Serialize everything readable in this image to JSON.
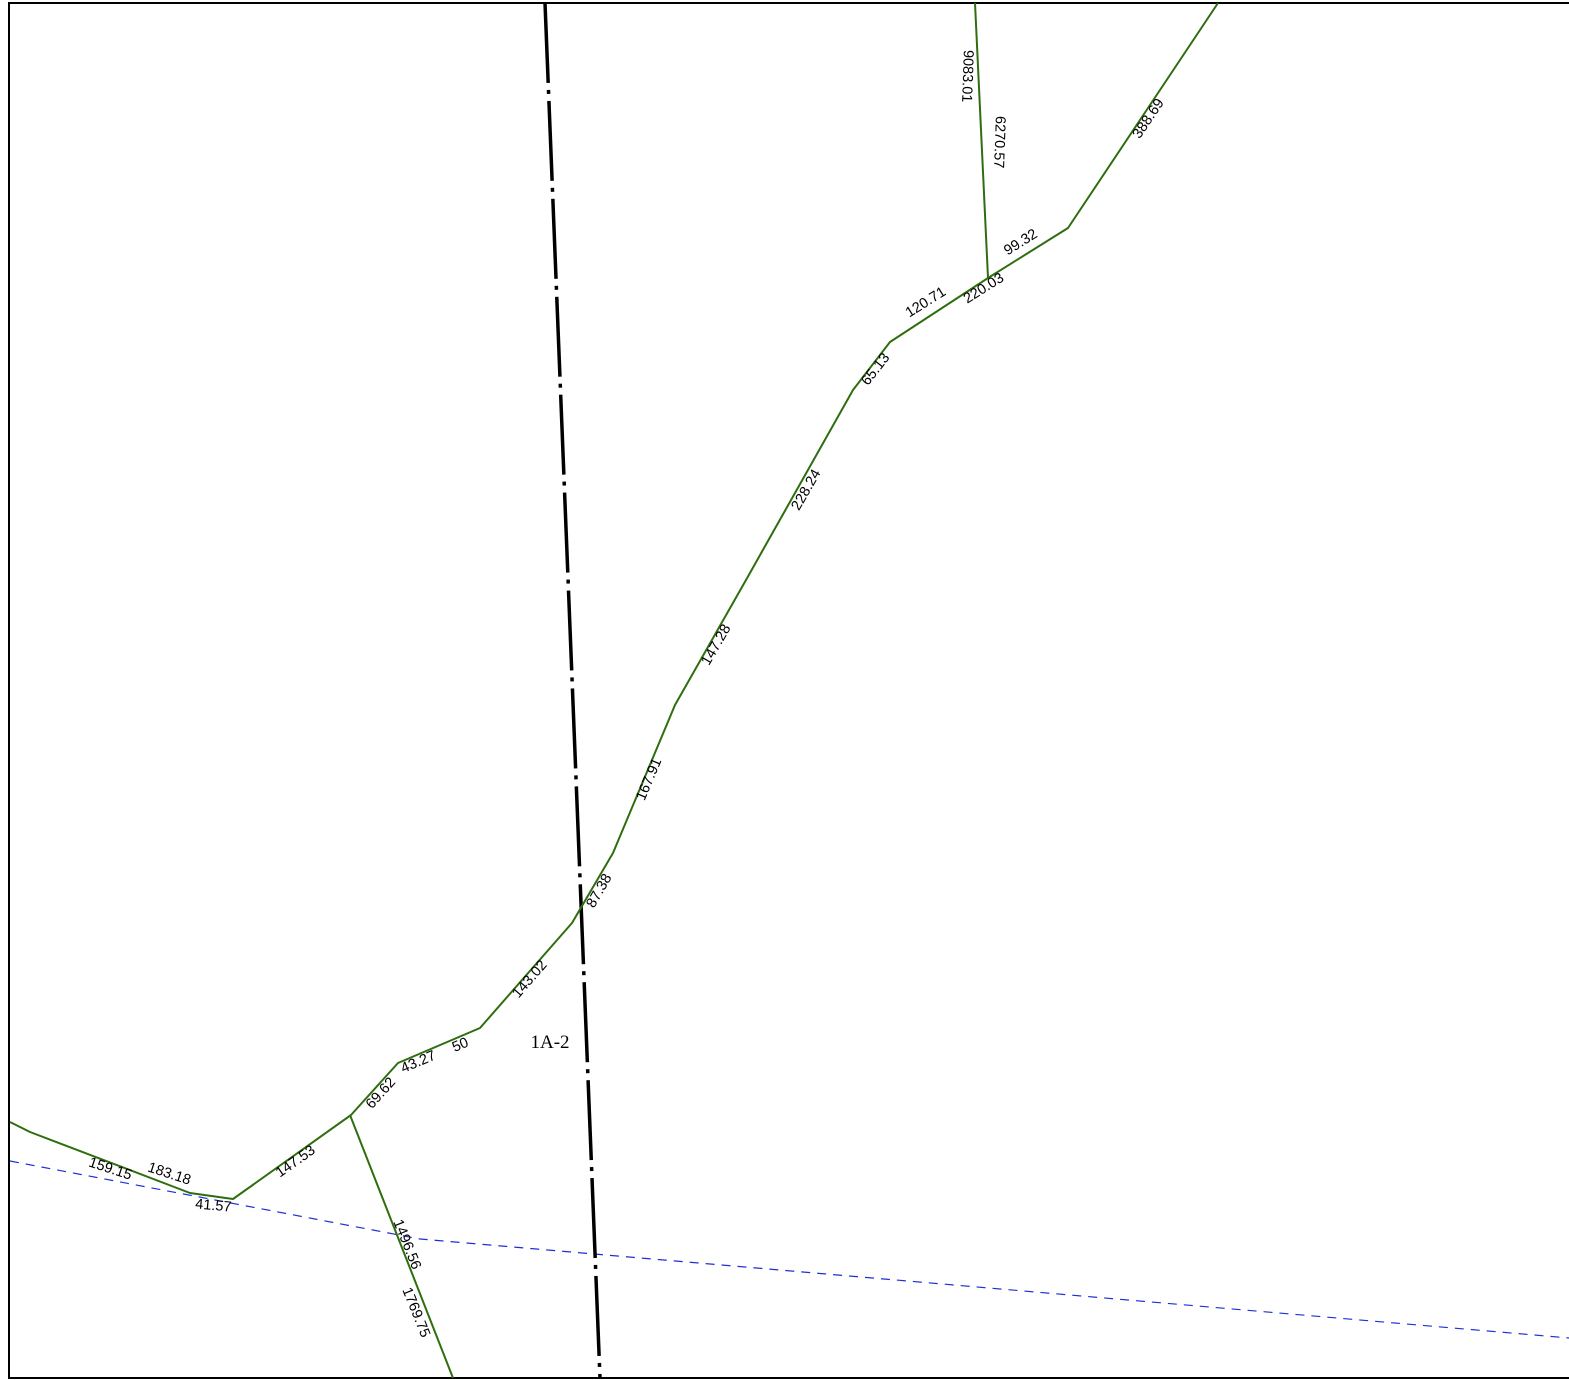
{
  "map": {
    "parcel_label": "1A-2",
    "colors": {
      "parcel_line": "#2e6e0e",
      "boundary_line": "#000000",
      "water_line": "#1f2fd6"
    },
    "dimensions": {
      "d_388_69": "388.69",
      "d_9083_01": "9083.01",
      "d_6270_57": "6270.57",
      "d_99_32": "99.32",
      "d_220_03": "220.03",
      "d_120_71": "120.71",
      "d_65_13": "65.13",
      "d_228_24": "228.24",
      "d_147_28": "147.28",
      "d_167_91": "167.91",
      "d_87_38": "87.38",
      "d_143_02": "143.02",
      "d_50": "50",
      "d_43_27": "43.27",
      "d_69_62": "69.62",
      "d_147_53": "147.53",
      "d_183_18": "183.18",
      "d_159_15": "159.15",
      "d_41_57": "41.57",
      "d_1496_56": "1496.56",
      "d_1769_75": "1769.75"
    }
  }
}
